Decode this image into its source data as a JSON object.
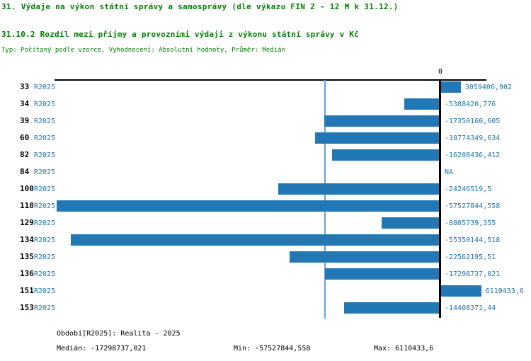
{
  "header": {
    "title": "31. Výdaje na výkon státní správy a samosprávy (dle výkazu FIN 2 - 12 M k 31.12.)",
    "subtitle": "31.10.2 Rozdíl mezi příjmy a provozními výdaji z výkonu státní správy v Kč",
    "type_line": "Typ: Počítaný podle vzorce, Vyhodnocení: Absolutní hodnoty, Průměr: Medián"
  },
  "chart_data": {
    "type": "bar",
    "orientation": "horizontal",
    "series_label": "R2025",
    "axis_zero_label": "0",
    "xlim": [
      -57527844.558,
      6110433.6
    ],
    "median_value": -17298737.021,
    "grid": false,
    "legend_position": "none",
    "categories": [
      "33",
      "34",
      "39",
      "60",
      "82",
      "84",
      "100",
      "118",
      "129",
      "134",
      "135",
      "136",
      "151",
      "153"
    ],
    "rows": [
      {
        "id": "33",
        "series": "R2025",
        "value": 3059406.902,
        "label": "3059406,902"
      },
      {
        "id": "34",
        "series": "R2025",
        "value": -5388420.776,
        "label": "-5388420,776"
      },
      {
        "id": "39",
        "series": "R2025",
        "value": -17350160.605,
        "label": "-17350160,605"
      },
      {
        "id": "60",
        "series": "R2025",
        "value": -18774349.634,
        "label": "-18774349,634"
      },
      {
        "id": "82",
        "series": "R2025",
        "value": -16208436.412,
        "label": "-16208436,412"
      },
      {
        "id": "84",
        "series": "R2025",
        "value": null,
        "label": "NA"
      },
      {
        "id": "100",
        "series": "R2025",
        "value": -24246519.5,
        "label": "-24246519,5"
      },
      {
        "id": "118",
        "series": "R2025",
        "value": -57527844.558,
        "label": "-57527844,558"
      },
      {
        "id": "129",
        "series": "R2025",
        "value": -8805739.355,
        "label": "-8805739,355"
      },
      {
        "id": "134",
        "series": "R2025",
        "value": -55350144.518,
        "label": "-55350144,518"
      },
      {
        "id": "135",
        "series": "R2025",
        "value": -22562195.51,
        "label": "-22562195,51"
      },
      {
        "id": "136",
        "series": "R2025",
        "value": -17298737.021,
        "label": "-17298737,021"
      },
      {
        "id": "151",
        "series": "R2025",
        "value": 6110433.6,
        "label": "6110433,6"
      },
      {
        "id": "153",
        "series": "R2025",
        "value": -14408371.44,
        "label": "-14408371,44"
      }
    ]
  },
  "footer": {
    "obdobi": "Období[R2025]: Realita - 2025",
    "median": "Medián: -17298737,021",
    "min": "Min: -57527844,558",
    "max": "Max: 6110433,6"
  },
  "colors": {
    "header_green": "#008000",
    "text_blue": "#1f77b4",
    "bar_blue": "#2278b5",
    "median_line_blue": "#68a1cf",
    "axis_black": "#000000"
  }
}
